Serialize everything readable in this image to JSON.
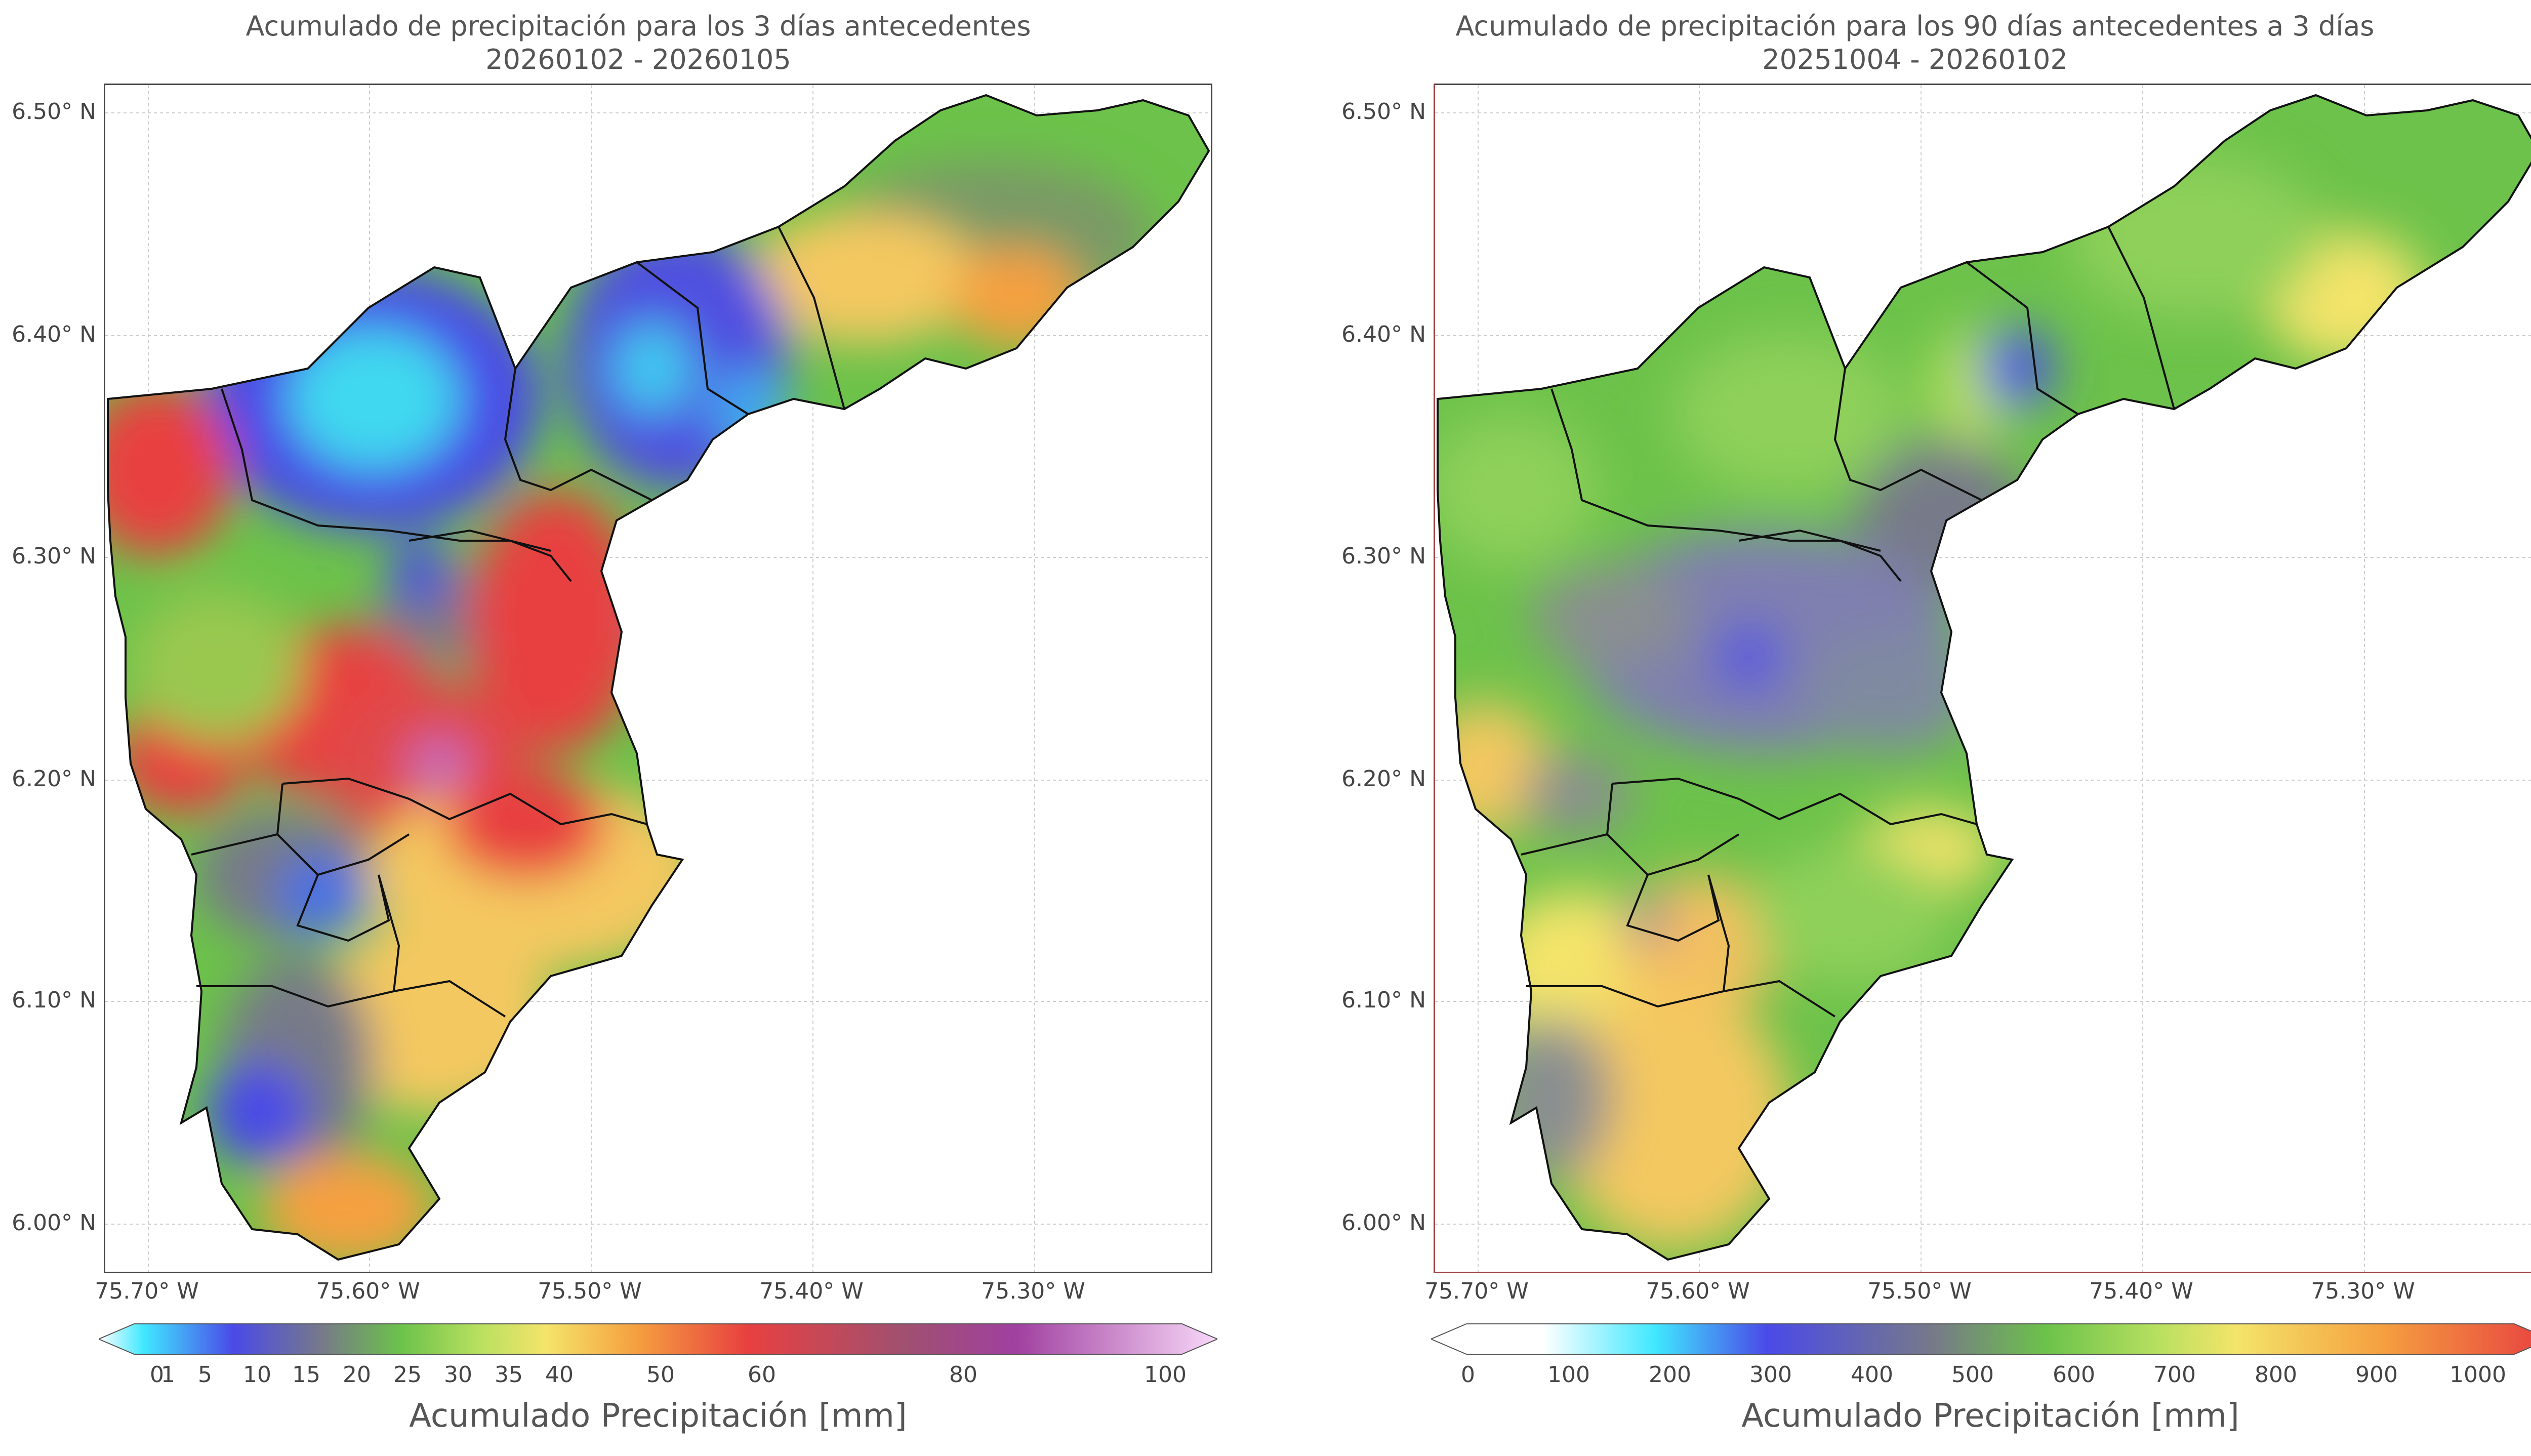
{
  "panels": [
    {
      "title_line1": "Acumulado de precipitación para los 3 días antecedentes",
      "title_line2": "20260102 - 20260105",
      "y_ticks": [
        "6.50° N",
        "6.40° N",
        "6.30° N",
        "6.20° N",
        "6.10° N",
        "6.00° N"
      ],
      "x_ticks": [
        "75.70° W",
        "75.60° W",
        "75.50° W",
        "75.40° W",
        "75.30° W"
      ],
      "colorbar_ticks": [
        "0",
        "1",
        "5",
        "10",
        "15",
        "20",
        "25",
        "30",
        "35",
        "40",
        "50",
        "60",
        "80",
        "100"
      ],
      "colorbar_title": "Acumulado Precipitación [mm]"
    },
    {
      "title_line1": "Acumulado de precipitación para los 90 días antecedentes a 3 días",
      "title_line2": "20251004 - 20260102",
      "y_ticks": [
        "6.50° N",
        "6.40° N",
        "6.30° N",
        "6.20° N",
        "6.10° N",
        "6.00° N"
      ],
      "x_ticks": [
        "75.70° W",
        "75.60° W",
        "75.50° W",
        "75.40° W",
        "75.30° W"
      ],
      "colorbar_ticks": [
        "0",
        "100",
        "200",
        "300",
        "400",
        "500",
        "600",
        "700",
        "800",
        "900",
        "1000"
      ],
      "colorbar_title": "Acumulado Precipitación [mm]"
    }
  ],
  "colors": {
    "green": "#6cc24a",
    "blue": "#4a4ae8",
    "cyan": "#40d8f0",
    "red": "#e84040",
    "yellow": "#f4e46a",
    "orange": "#f5a040",
    "purple": "#a040a0",
    "gray": "#777a88"
  }
}
